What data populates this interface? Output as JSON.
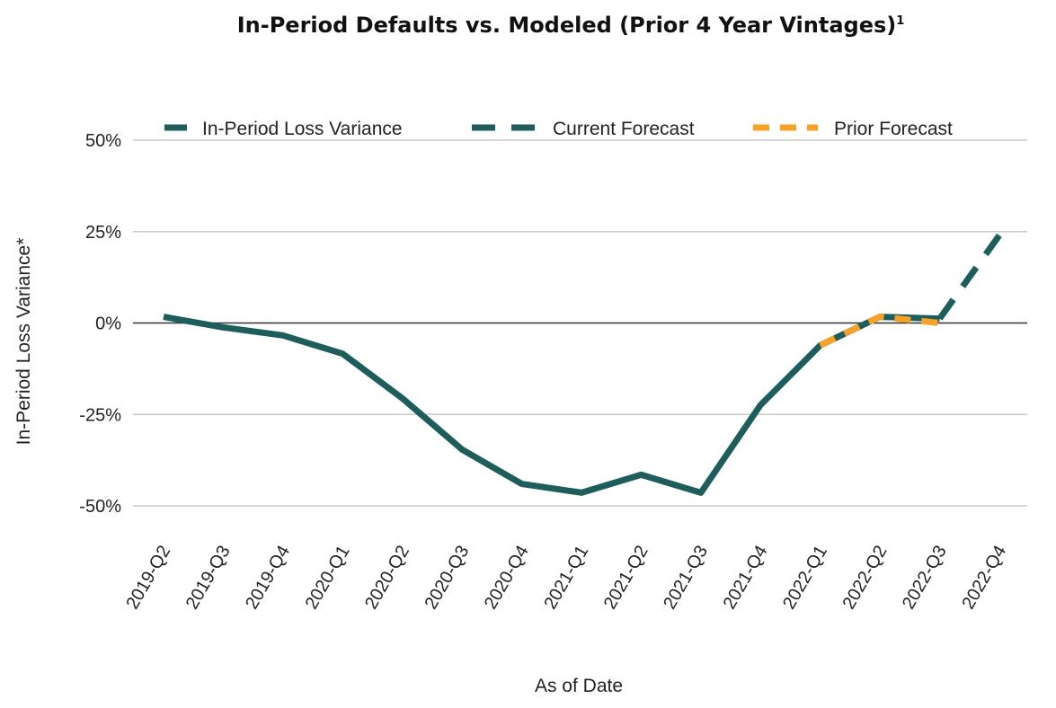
{
  "chart_data": {
    "type": "line",
    "title": "In-Period Defaults vs. Modeled (Prior 4 Year Vintages)",
    "title_superscript": "1",
    "xlabel": "As of Date",
    "ylabel": "In-Period Loss Variance*",
    "ylim": [
      -50,
      50
    ],
    "yticks": [
      50,
      25,
      0,
      -25,
      -50
    ],
    "ytick_labels": [
      "50%",
      "25%",
      "0%",
      "-25%",
      "-50%"
    ],
    "grid": true,
    "legend_placement": "top",
    "categories": [
      "2019-Q2",
      "2019-Q3",
      "2019-Q4",
      "2020-Q1",
      "2020-Q2",
      "2020-Q3",
      "2020-Q4",
      "2021-Q1",
      "2021-Q2",
      "2021-Q3",
      "2021-Q4",
      "2022-Q1",
      "2022-Q2",
      "2022-Q3",
      "2022-Q4"
    ],
    "series": [
      {
        "name": "In-Period Loss Variance",
        "color": "#1d5e5c",
        "style": "solid",
        "values": [
          1.7,
          -1.2,
          -3.4,
          -8.4,
          -20.6,
          -34.6,
          -44,
          -46.4,
          -41.5,
          -46.4,
          -22.4,
          -6.1,
          1.7,
          1.2,
          null
        ]
      },
      {
        "name": "Current Forecast",
        "color": "#1d5e5c",
        "style": "dashed",
        "values": [
          null,
          null,
          null,
          null,
          null,
          null,
          null,
          null,
          null,
          null,
          null,
          null,
          null,
          1.2,
          24
        ]
      },
      {
        "name": "Prior Forecast",
        "color": "#f7a128",
        "style": "dashed",
        "values": [
          null,
          null,
          null,
          null,
          null,
          null,
          null,
          null,
          null,
          null,
          null,
          -6.1,
          1.7,
          0,
          null
        ]
      }
    ]
  }
}
